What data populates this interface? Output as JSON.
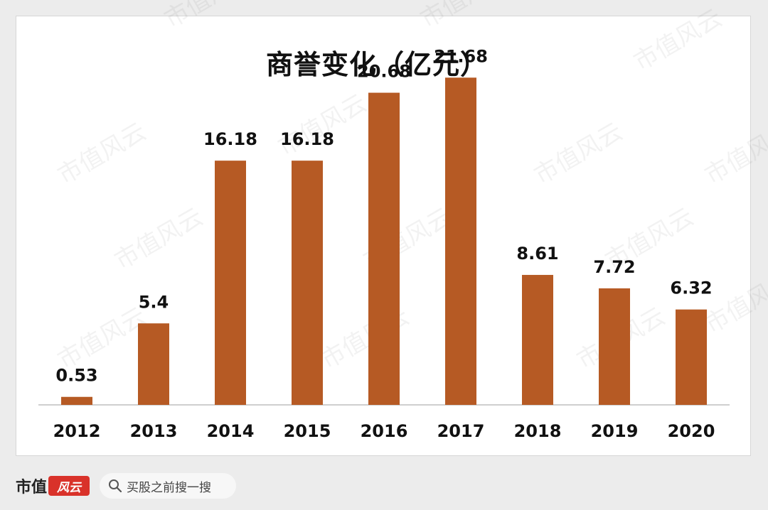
{
  "chart_data": {
    "type": "bar",
    "title": "商誉变化（亿元）",
    "categories": [
      "2012",
      "2013",
      "2014",
      "2015",
      "2016",
      "2017",
      "2018",
      "2019",
      "2020"
    ],
    "values": [
      0.53,
      5.4,
      16.18,
      16.18,
      20.68,
      21.68,
      8.61,
      7.72,
      6.32
    ],
    "data_labels": [
      "0.53",
      "5.4",
      "16.18",
      "16.18",
      "20.68",
      "21.68",
      "8.61",
      "7.72",
      "6.32"
    ],
    "xlabel": "",
    "ylabel": "",
    "ylim": [
      0,
      24
    ],
    "grid": false,
    "legend": "none",
    "bar_color": "#b65a24"
  },
  "watermark": "市值风云",
  "footer": {
    "brand_text": "市值",
    "brand_badge": "风云",
    "search_text": "买股之前搜一搜"
  }
}
